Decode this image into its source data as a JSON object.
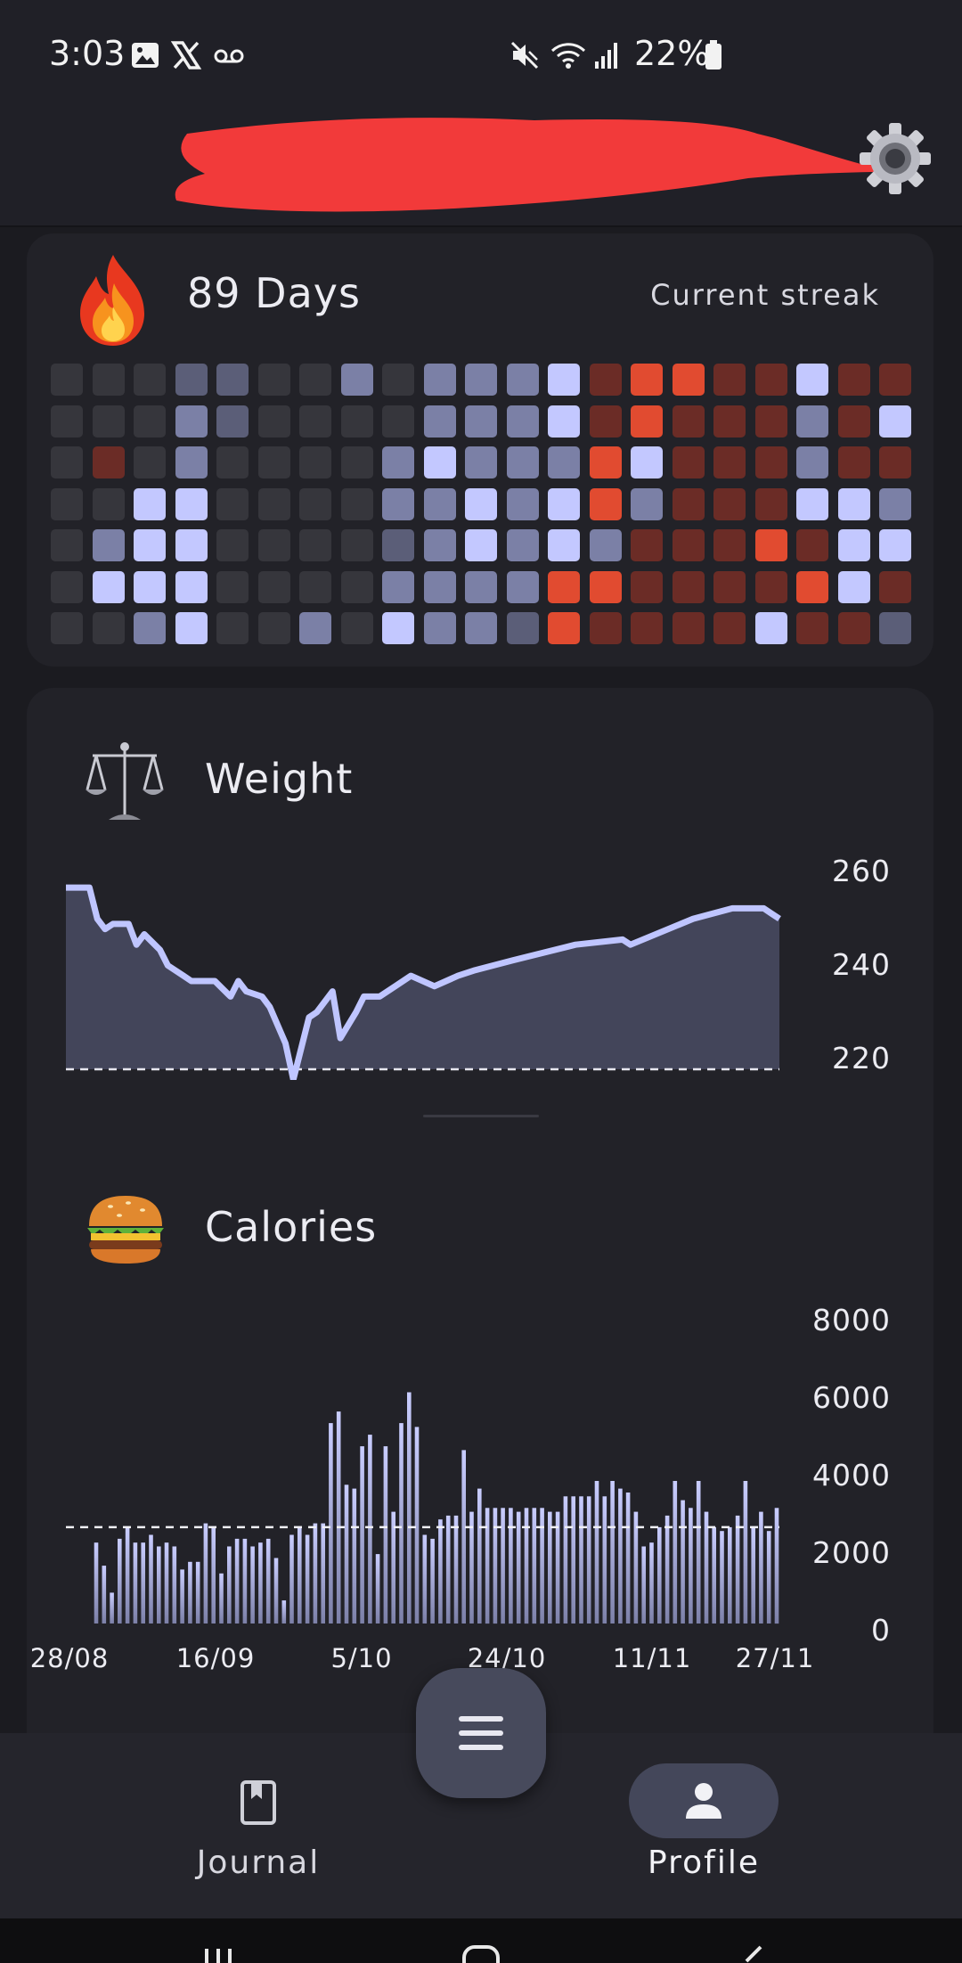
{
  "status_bar": {
    "time": "3:03",
    "battery": "22%",
    "left_icons": [
      "image-icon",
      "x-logo-icon",
      "voicemail-icon"
    ],
    "right_icons": [
      "mute-icon",
      "wifi-icon",
      "signal-icon",
      "battery-icon"
    ]
  },
  "header": {
    "settings_icon": "gear-icon"
  },
  "streak": {
    "days": "89 Days",
    "label": "Current streak",
    "icon": "fire-icon",
    "colors": {
      "0": "#36363c",
      "1": "#5b5e78",
      "2": "#7b80a6",
      "3": "#c3c8ff",
      "4": "#6b2c26",
      "5": "#e14b30"
    },
    "grid": [
      [
        0,
        0,
        0,
        1,
        1,
        0,
        0,
        2,
        0,
        2,
        2,
        2,
        3,
        4,
        5,
        5,
        4,
        4,
        3,
        4,
        4
      ],
      [
        0,
        0,
        0,
        2,
        1,
        0,
        0,
        0,
        0,
        2,
        2,
        2,
        3,
        4,
        5,
        4,
        4,
        4,
        2,
        4,
        3
      ],
      [
        0,
        4,
        0,
        2,
        0,
        0,
        0,
        0,
        2,
        3,
        2,
        2,
        2,
        5,
        3,
        4,
        4,
        4,
        2,
        4,
        4
      ],
      [
        0,
        0,
        3,
        3,
        0,
        0,
        0,
        0,
        2,
        2,
        3,
        2,
        3,
        5,
        2,
        4,
        4,
        4,
        3,
        3,
        2
      ],
      [
        0,
        2,
        3,
        3,
        0,
        0,
        0,
        0,
        1,
        2,
        3,
        2,
        3,
        2,
        4,
        4,
        4,
        5,
        4,
        3,
        3
      ],
      [
        0,
        3,
        3,
        3,
        0,
        0,
        0,
        0,
        2,
        2,
        2,
        2,
        5,
        5,
        4,
        4,
        4,
        4,
        5,
        3,
        4
      ],
      [
        0,
        0,
        2,
        3,
        0,
        0,
        2,
        0,
        3,
        2,
        2,
        1,
        5,
        4,
        4,
        4,
        4,
        3,
        4,
        4,
        1
      ]
    ]
  },
  "weight": {
    "title": "Weight",
    "icon": "scale-icon",
    "y_ticks": [
      "260",
      "240",
      "220"
    ],
    "line_color": "#bfc5ff",
    "fill_color": "#43455a"
  },
  "calories": {
    "title": "Calories",
    "icon": "burger-icon",
    "y_ticks": [
      "8000",
      "6000",
      "4000",
      "2000",
      "0"
    ],
    "x_ticks": [
      "28/08",
      "16/09",
      "5/10",
      "24/10",
      "11/11",
      "27/11"
    ]
  },
  "chart_data": [
    {
      "type": "area",
      "title": "Weight",
      "x": [
        "28/08",
        "31/08",
        "01/09",
        "02/09",
        "03/09",
        "05/09",
        "06/09",
        "07/09",
        "09/09",
        "10/09",
        "12/09",
        "13/09",
        "15/09",
        "16/09",
        "18/09",
        "19/09",
        "20/09",
        "22/09",
        "23/09",
        "25/09",
        "26/09",
        "28/09",
        "29/09",
        "30/09",
        "01/10",
        "02/10",
        "04/10",
        "05/10",
        "06/10",
        "07/10",
        "09/10",
        "11/10",
        "14/10",
        "17/10",
        "19/10",
        "24/10",
        "01/11",
        "07/11",
        "08/11",
        "16/11",
        "21/11",
        "25/11",
        "26/11",
        "27/11"
      ],
      "y": [
        255,
        255,
        249,
        247,
        248,
        248,
        244,
        246,
        243,
        240,
        238,
        237,
        237,
        237,
        234,
        237,
        235,
        234,
        232,
        225,
        218,
        230,
        231,
        233,
        235,
        226,
        231,
        234,
        234,
        234,
        236,
        238,
        236,
        238,
        239,
        241,
        244,
        245,
        244,
        249,
        251,
        251,
        250,
        249
      ],
      "ylim": [
        220,
        260
      ],
      "y_ticks": [
        260,
        240,
        220
      ],
      "reference_line": 220
    },
    {
      "type": "bar",
      "title": "Calories",
      "values": [
        2100,
        1500,
        800,
        2200,
        2500,
        2100,
        2100,
        2300,
        2000,
        2100,
        2000,
        1400,
        1600,
        1600,
        2600,
        2500,
        1300,
        2000,
        2200,
        2200,
        2000,
        2100,
        2200,
        1700,
        600,
        2300,
        2500,
        2300,
        2600,
        2600,
        5200,
        5500,
        3600,
        3500,
        4600,
        4900,
        1800,
        4600,
        2900,
        5200,
        6000,
        5100,
        2300,
        2200,
        2700,
        2800,
        2800,
        4500,
        2900,
        3500,
        3000,
        3000,
        3000,
        3000,
        2900,
        3000,
        3000,
        3000,
        2900,
        2900,
        3300,
        3300,
        3300,
        3300,
        3700,
        3300,
        3700,
        3500,
        3400,
        2900,
        2000,
        2100,
        2500,
        2800,
        3700,
        3200,
        3000,
        3700,
        2900,
        2500,
        2400,
        2500,
        2800,
        3700,
        2500,
        2900,
        2400,
        3000
      ],
      "ylim": [
        0,
        8000
      ],
      "y_ticks": [
        8000,
        6000,
        4000,
        2000,
        0
      ],
      "x_ticks": [
        "28/08",
        "16/09",
        "5/10",
        "24/10",
        "11/11",
        "27/11"
      ],
      "reference_line": 2500
    }
  ],
  "nav": {
    "journal_label": "Journal",
    "profile_label": "Profile",
    "menu_icon": "menu-icon"
  }
}
